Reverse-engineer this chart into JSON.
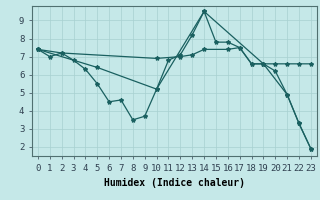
{
  "xlabel": "Humidex (Indice chaleur)",
  "background_color": "#c5e8e8",
  "grid_color": "#a8d0d0",
  "line_color": "#1a6060",
  "xlim": [
    -0.5,
    23.5
  ],
  "ylim": [
    1.5,
    9.8
  ],
  "xticks": [
    0,
    1,
    2,
    3,
    4,
    5,
    6,
    7,
    8,
    9,
    10,
    11,
    12,
    13,
    14,
    15,
    16,
    17,
    18,
    19,
    20,
    21,
    22,
    23
  ],
  "yticks": [
    2,
    3,
    4,
    5,
    6,
    7,
    8,
    9
  ],
  "series1_x": [
    0,
    1,
    2,
    3,
    4,
    5,
    6,
    7,
    8,
    9,
    10,
    11,
    12,
    13,
    14,
    15,
    16,
    17,
    18,
    19,
    20,
    21,
    22,
    23
  ],
  "series1_y": [
    7.4,
    7.0,
    7.2,
    6.8,
    6.3,
    5.5,
    4.5,
    4.6,
    3.5,
    3.7,
    5.2,
    6.8,
    7.1,
    8.2,
    9.5,
    7.8,
    7.8,
    7.5,
    6.6,
    6.6,
    6.2,
    4.9,
    3.3,
    1.9
  ],
  "series2_x": [
    0,
    2,
    10,
    12,
    13,
    14,
    16,
    17,
    18,
    19,
    20,
    21,
    22,
    23
  ],
  "series2_y": [
    7.4,
    7.2,
    6.9,
    7.0,
    7.1,
    7.4,
    7.4,
    7.5,
    6.6,
    6.6,
    6.6,
    6.6,
    6.6,
    6.6
  ],
  "series3_x": [
    0,
    5,
    10,
    14,
    19,
    21,
    22,
    23
  ],
  "series3_y": [
    7.4,
    6.4,
    5.2,
    9.5,
    6.6,
    4.9,
    3.3,
    1.9
  ],
  "marker": "*",
  "markersize": 3,
  "linewidth": 0.9,
  "xlabel_fontsize": 7,
  "tick_fontsize": 6.5
}
